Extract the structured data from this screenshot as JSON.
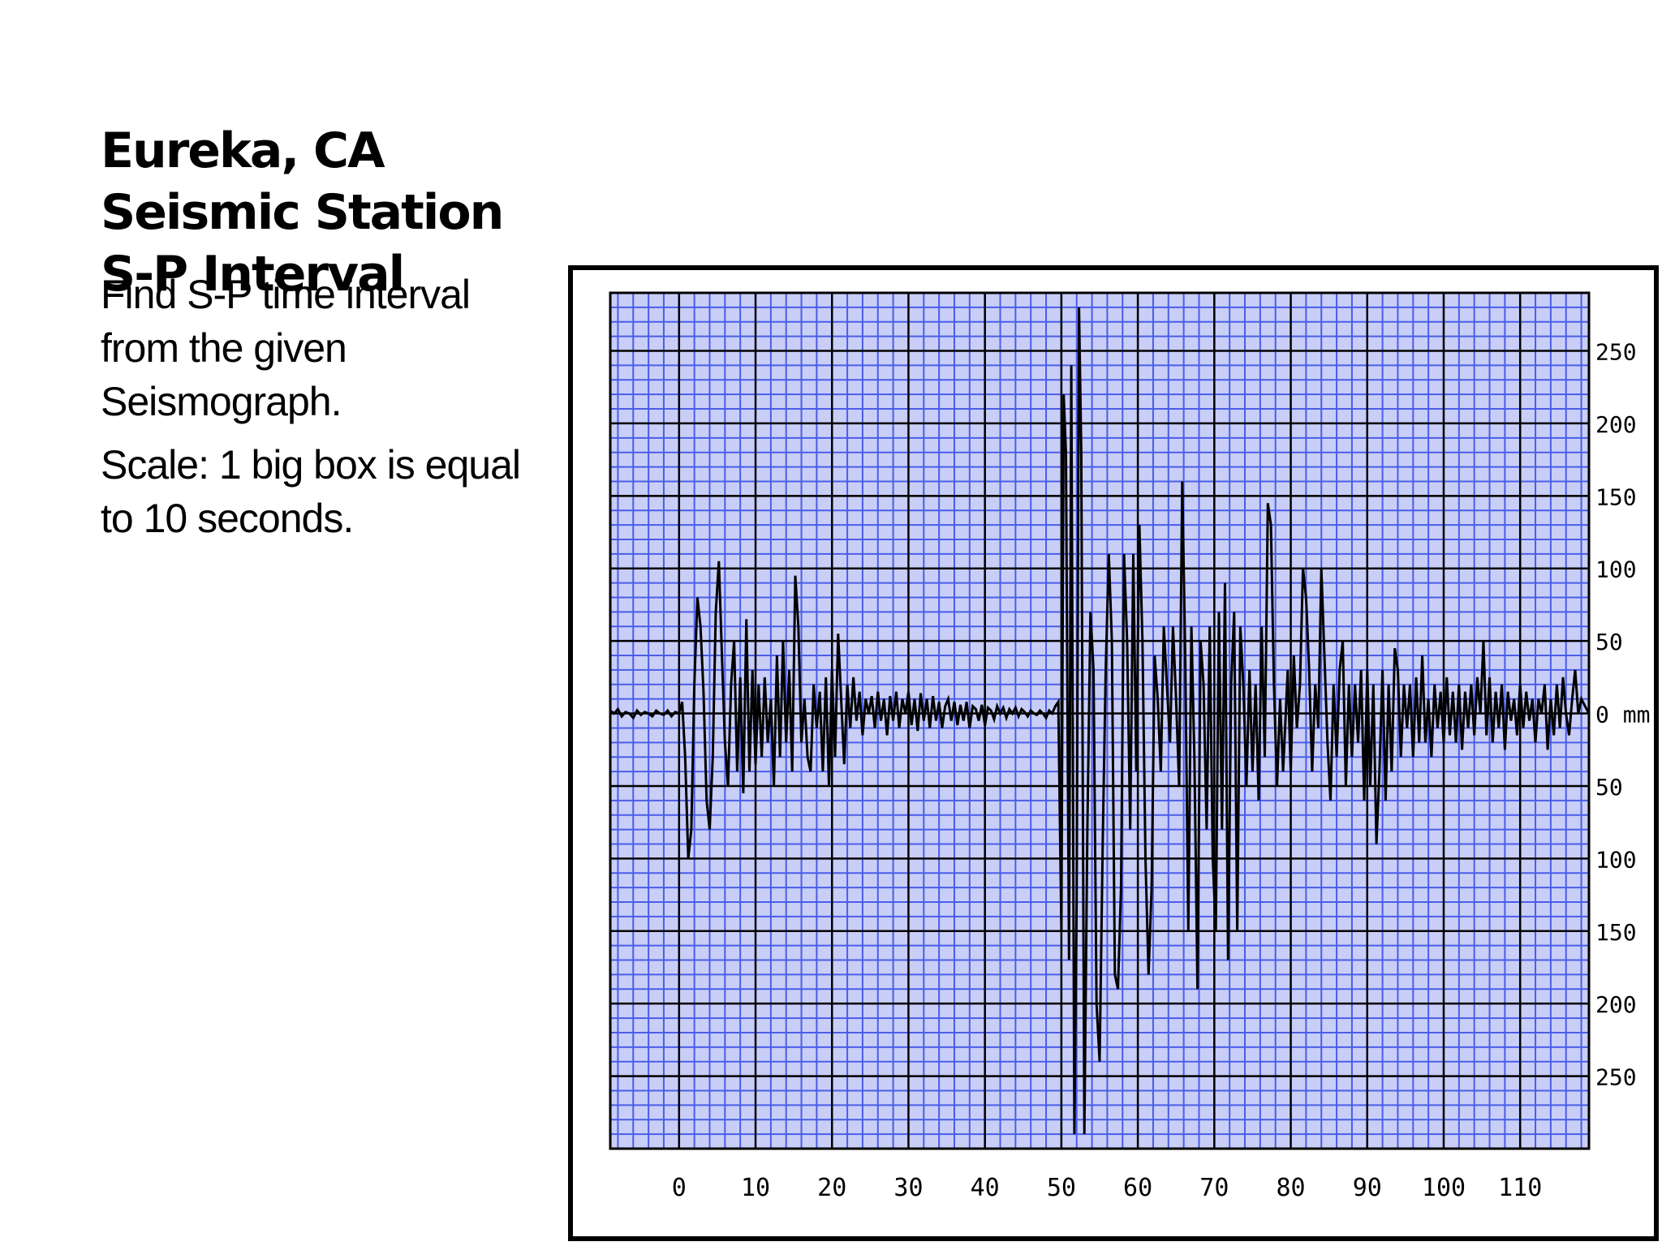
{
  "slide": {
    "title": "Eureka, CA Seismic Station S-P Interval",
    "instructions": "Find S-P time interval from the given Seismograph.",
    "scale_note": "Scale: 1 big box is equal to 10 seconds."
  },
  "colors": {
    "minor_grid": "#4a5de8",
    "grid_background": "#c9cef7",
    "major_grid": "#000000",
    "trace": "#000000"
  },
  "chart_data": {
    "type": "line",
    "title": "",
    "xlabel": "",
    "ylabel": "",
    "y_unit": "mm",
    "xlim": [
      -9,
      119
    ],
    "ylim": [
      -300,
      290
    ],
    "x_ticks": [
      "0",
      "10",
      "20",
      "30",
      "40",
      "50",
      "60",
      "70",
      "80",
      "90",
      "100",
      "110"
    ],
    "x_tick_values": [
      0,
      10,
      20,
      30,
      40,
      50,
      60,
      70,
      80,
      90,
      100,
      110
    ],
    "y_ticks": [
      "250",
      "200",
      "150",
      "100",
      "50",
      "0 mm",
      "50",
      "100",
      "150",
      "200",
      "250"
    ],
    "y_tick_values": [
      250,
      200,
      150,
      100,
      50,
      0,
      -50,
      -100,
      -150,
      -200,
      -250
    ],
    "grid": true,
    "series": [
      {
        "values": [
          [
            -9,
            2
          ],
          [
            -8.5,
            0
          ],
          [
            -8,
            3
          ],
          [
            -7.5,
            -2
          ],
          [
            -7,
            1
          ],
          [
            -6.5,
            0
          ],
          [
            -6,
            -3
          ],
          [
            -5.5,
            2
          ],
          [
            -5,
            -1
          ],
          [
            -4.5,
            1
          ],
          [
            -4,
            0
          ],
          [
            -3.5,
            -2
          ],
          [
            -3,
            2
          ],
          [
            -2.5,
            0
          ],
          [
            -2,
            -1
          ],
          [
            -1.5,
            2
          ],
          [
            -1,
            -2
          ],
          [
            -0.5,
            1
          ],
          [
            0,
            0
          ],
          [
            0.4,
            8
          ],
          [
            0.8,
            -30
          ],
          [
            1.2,
            -100
          ],
          [
            1.6,
            -80
          ],
          [
            2,
            20
          ],
          [
            2.4,
            80
          ],
          [
            2.8,
            60
          ],
          [
            3.2,
            15
          ],
          [
            3.6,
            -60
          ],
          [
            4,
            -80
          ],
          [
            4.4,
            -30
          ],
          [
            4.8,
            70
          ],
          [
            5.2,
            105
          ],
          [
            5.6,
            40
          ],
          [
            6,
            -20
          ],
          [
            6.4,
            -50
          ],
          [
            6.8,
            20
          ],
          [
            7.2,
            50
          ],
          [
            7.6,
            -40
          ],
          [
            8,
            25
          ],
          [
            8.4,
            -55
          ],
          [
            8.8,
            65
          ],
          [
            9.2,
            -40
          ],
          [
            9.6,
            30
          ],
          [
            10,
            -35
          ],
          [
            10.4,
            20
          ],
          [
            10.8,
            -30
          ],
          [
            11.2,
            25
          ],
          [
            11.6,
            -20
          ],
          [
            12,
            10
          ],
          [
            12.4,
            -50
          ],
          [
            12.8,
            40
          ],
          [
            13.2,
            -30
          ],
          [
            13.6,
            50
          ],
          [
            14,
            -20
          ],
          [
            14.4,
            30
          ],
          [
            14.8,
            -40
          ],
          [
            15.2,
            95
          ],
          [
            15.6,
            60
          ],
          [
            16,
            -20
          ],
          [
            16.4,
            10
          ],
          [
            16.8,
            -30
          ],
          [
            17.2,
            -40
          ],
          [
            17.6,
            20
          ],
          [
            18,
            -10
          ],
          [
            18.4,
            15
          ],
          [
            18.8,
            -40
          ],
          [
            19.2,
            25
          ],
          [
            19.6,
            -50
          ],
          [
            20,
            30
          ],
          [
            20.4,
            -30
          ],
          [
            20.8,
            55
          ],
          [
            21.2,
            10
          ],
          [
            21.6,
            -35
          ],
          [
            22,
            20
          ],
          [
            22.4,
            -10
          ],
          [
            22.8,
            25
          ],
          [
            23.2,
            -5
          ],
          [
            23.6,
            15
          ],
          [
            24,
            -15
          ],
          [
            24.4,
            10
          ],
          [
            24.8,
            0
          ],
          [
            25.2,
            12
          ],
          [
            25.6,
            -10
          ],
          [
            26,
            15
          ],
          [
            26.4,
            -5
          ],
          [
            26.8,
            10
          ],
          [
            27.2,
            -15
          ],
          [
            27.6,
            12
          ],
          [
            28,
            -5
          ],
          [
            28.4,
            15
          ],
          [
            28.8,
            -10
          ],
          [
            29.2,
            10
          ],
          [
            29.6,
            0
          ],
          [
            30,
            15
          ],
          [
            30.4,
            -8
          ],
          [
            30.8,
            10
          ],
          [
            31.2,
            -12
          ],
          [
            31.6,
            14
          ],
          [
            32,
            -5
          ],
          [
            32.4,
            10
          ],
          [
            32.8,
            -10
          ],
          [
            33.2,
            12
          ],
          [
            33.6,
            -5
          ],
          [
            34,
            8
          ],
          [
            34.4,
            -10
          ],
          [
            34.8,
            5
          ],
          [
            35.2,
            10
          ],
          [
            35.6,
            -5
          ],
          [
            36,
            8
          ],
          [
            36.4,
            -8
          ],
          [
            36.8,
            6
          ],
          [
            37.2,
            -5
          ],
          [
            37.6,
            8
          ],
          [
            38,
            -10
          ],
          [
            38.4,
            5
          ],
          [
            38.8,
            3
          ],
          [
            39.2,
            -5
          ],
          [
            39.6,
            6
          ],
          [
            40,
            -8
          ],
          [
            40.4,
            4
          ],
          [
            40.8,
            2
          ],
          [
            41.2,
            -4
          ],
          [
            41.6,
            5
          ],
          [
            42,
            0
          ],
          [
            42.4,
            4
          ],
          [
            42.8,
            -3
          ],
          [
            43.2,
            3
          ],
          [
            43.6,
            0
          ],
          [
            44,
            4
          ],
          [
            44.4,
            -2
          ],
          [
            44.8,
            3
          ],
          [
            45.2,
            1
          ],
          [
            45.6,
            -2
          ],
          [
            46,
            2
          ],
          [
            46.4,
            0
          ],
          [
            46.8,
            -1
          ],
          [
            47.2,
            2
          ],
          [
            47.6,
            0
          ],
          [
            48,
            -3
          ],
          [
            48.4,
            2
          ],
          [
            48.8,
            0
          ],
          [
            49.2,
            5
          ],
          [
            49.6,
            8
          ],
          [
            50,
            -150
          ],
          [
            50.3,
            220
          ],
          [
            50.6,
            180
          ],
          [
            51,
            -170
          ],
          [
            51.3,
            240
          ],
          [
            51.7,
            -290
          ],
          [
            52,
            -130
          ],
          [
            52.3,
            280
          ],
          [
            52.6,
            180
          ],
          [
            53,
            -290
          ],
          [
            53.4,
            -80
          ],
          [
            53.8,
            70
          ],
          [
            54.2,
            30
          ],
          [
            54.6,
            -200
          ],
          [
            55,
            -240
          ],
          [
            55.4,
            -90
          ],
          [
            55.8,
            30
          ],
          [
            56.2,
            110
          ],
          [
            56.6,
            50
          ],
          [
            57,
            -180
          ],
          [
            57.4,
            -190
          ],
          [
            57.8,
            -120
          ],
          [
            58.2,
            110
          ],
          [
            58.6,
            50
          ],
          [
            59,
            -80
          ],
          [
            59.4,
            110
          ],
          [
            59.8,
            -40
          ],
          [
            60.2,
            130
          ],
          [
            60.6,
            50
          ],
          [
            61,
            -100
          ],
          [
            61.4,
            -180
          ],
          [
            61.8,
            -120
          ],
          [
            62.2,
            40
          ],
          [
            62.6,
            10
          ],
          [
            63,
            -40
          ],
          [
            63.4,
            60
          ],
          [
            63.8,
            20
          ],
          [
            64.2,
            -20
          ],
          [
            64.6,
            60
          ],
          [
            65,
            10
          ],
          [
            65.4,
            -50
          ],
          [
            65.8,
            160
          ],
          [
            66.2,
            40
          ],
          [
            66.6,
            -150
          ],
          [
            67,
            60
          ],
          [
            67.4,
            -30
          ],
          [
            67.8,
            -190
          ],
          [
            68.2,
            50
          ],
          [
            68.6,
            20
          ],
          [
            69,
            -80
          ],
          [
            69.4,
            60
          ],
          [
            69.8,
            -100
          ],
          [
            70.2,
            -150
          ],
          [
            70.6,
            70
          ],
          [
            71,
            -80
          ],
          [
            71.4,
            90
          ],
          [
            71.8,
            -170
          ],
          [
            72.2,
            20
          ],
          [
            72.6,
            70
          ],
          [
            73,
            -150
          ],
          [
            73.4,
            60
          ],
          [
            73.8,
            20
          ],
          [
            74.2,
            -50
          ],
          [
            74.6,
            30
          ],
          [
            75,
            -40
          ],
          [
            75.4,
            20
          ],
          [
            75.8,
            -60
          ],
          [
            76.2,
            60
          ],
          [
            76.6,
            -30
          ],
          [
            77,
            145
          ],
          [
            77.4,
            130
          ],
          [
            77.8,
            20
          ],
          [
            78.2,
            -50
          ],
          [
            78.6,
            10
          ],
          [
            79,
            -40
          ],
          [
            79.6,
            30
          ],
          [
            80,
            -40
          ],
          [
            80.4,
            40
          ],
          [
            80.8,
            -10
          ],
          [
            81.2,
            20
          ],
          [
            81.6,
            100
          ],
          [
            82,
            80
          ],
          [
            82.4,
            30
          ],
          [
            82.8,
            -40
          ],
          [
            83.2,
            20
          ],
          [
            83.6,
            -10
          ],
          [
            84,
            100
          ],
          [
            84.4,
            40
          ],
          [
            84.8,
            -20
          ],
          [
            85.2,
            -60
          ],
          [
            85.6,
            20
          ],
          [
            86,
            -30
          ],
          [
            86.4,
            30
          ],
          [
            86.8,
            50
          ],
          [
            87.2,
            -50
          ],
          [
            87.6,
            20
          ],
          [
            88,
            -30
          ],
          [
            88.4,
            20
          ],
          [
            88.8,
            -20
          ],
          [
            89.2,
            30
          ],
          [
            89.6,
            -60
          ],
          [
            90,
            30
          ],
          [
            90.4,
            -50
          ],
          [
            90.8,
            20
          ],
          [
            91.2,
            -90
          ],
          [
            91.6,
            -40
          ],
          [
            92,
            30
          ],
          [
            92.4,
            -60
          ],
          [
            92.8,
            20
          ],
          [
            93.2,
            -40
          ],
          [
            93.6,
            45
          ],
          [
            94,
            30
          ],
          [
            94.4,
            -30
          ],
          [
            94.8,
            20
          ],
          [
            95.2,
            -10
          ],
          [
            95.6,
            20
          ],
          [
            96,
            -30
          ],
          [
            96.4,
            25
          ],
          [
            96.8,
            -20
          ],
          [
            97.2,
            40
          ],
          [
            97.6,
            -20
          ],
          [
            98,
            10
          ],
          [
            98.4,
            -30
          ],
          [
            98.8,
            20
          ],
          [
            99.2,
            -10
          ],
          [
            99.6,
            15
          ],
          [
            100,
            -20
          ],
          [
            100.4,
            25
          ],
          [
            100.8,
            -15
          ],
          [
            101.2,
            15
          ],
          [
            101.6,
            -20
          ],
          [
            102,
            20
          ],
          [
            102.4,
            -25
          ],
          [
            102.8,
            15
          ],
          [
            103.2,
            -10
          ],
          [
            103.6,
            20
          ],
          [
            104,
            -15
          ],
          [
            104.4,
            25
          ],
          [
            104.8,
            0
          ],
          [
            105.2,
            50
          ],
          [
            105.6,
            -15
          ],
          [
            106,
            25
          ],
          [
            106.4,
            -20
          ],
          [
            106.8,
            15
          ],
          [
            107.2,
            -10
          ],
          [
            107.6,
            20
          ],
          [
            108,
            -25
          ],
          [
            108.4,
            15
          ],
          [
            108.8,
            -5
          ],
          [
            109.2,
            10
          ],
          [
            109.6,
            -15
          ],
          [
            110,
            20
          ],
          [
            110.4,
            -10
          ],
          [
            110.8,
            15
          ],
          [
            111.2,
            -5
          ],
          [
            111.6,
            10
          ],
          [
            112,
            -20
          ],
          [
            112.4,
            10
          ],
          [
            112.8,
            0
          ],
          [
            113.2,
            20
          ],
          [
            113.6,
            -25
          ],
          [
            114,
            10
          ],
          [
            114.4,
            -15
          ],
          [
            114.8,
            20
          ],
          [
            115.2,
            -10
          ],
          [
            115.6,
            25
          ],
          [
            116,
            0
          ],
          [
            116.4,
            -15
          ],
          [
            116.8,
            10
          ],
          [
            117.2,
            30
          ],
          [
            117.6,
            0
          ],
          [
            118,
            10
          ],
          [
            119,
            0
          ]
        ]
      }
    ]
  }
}
